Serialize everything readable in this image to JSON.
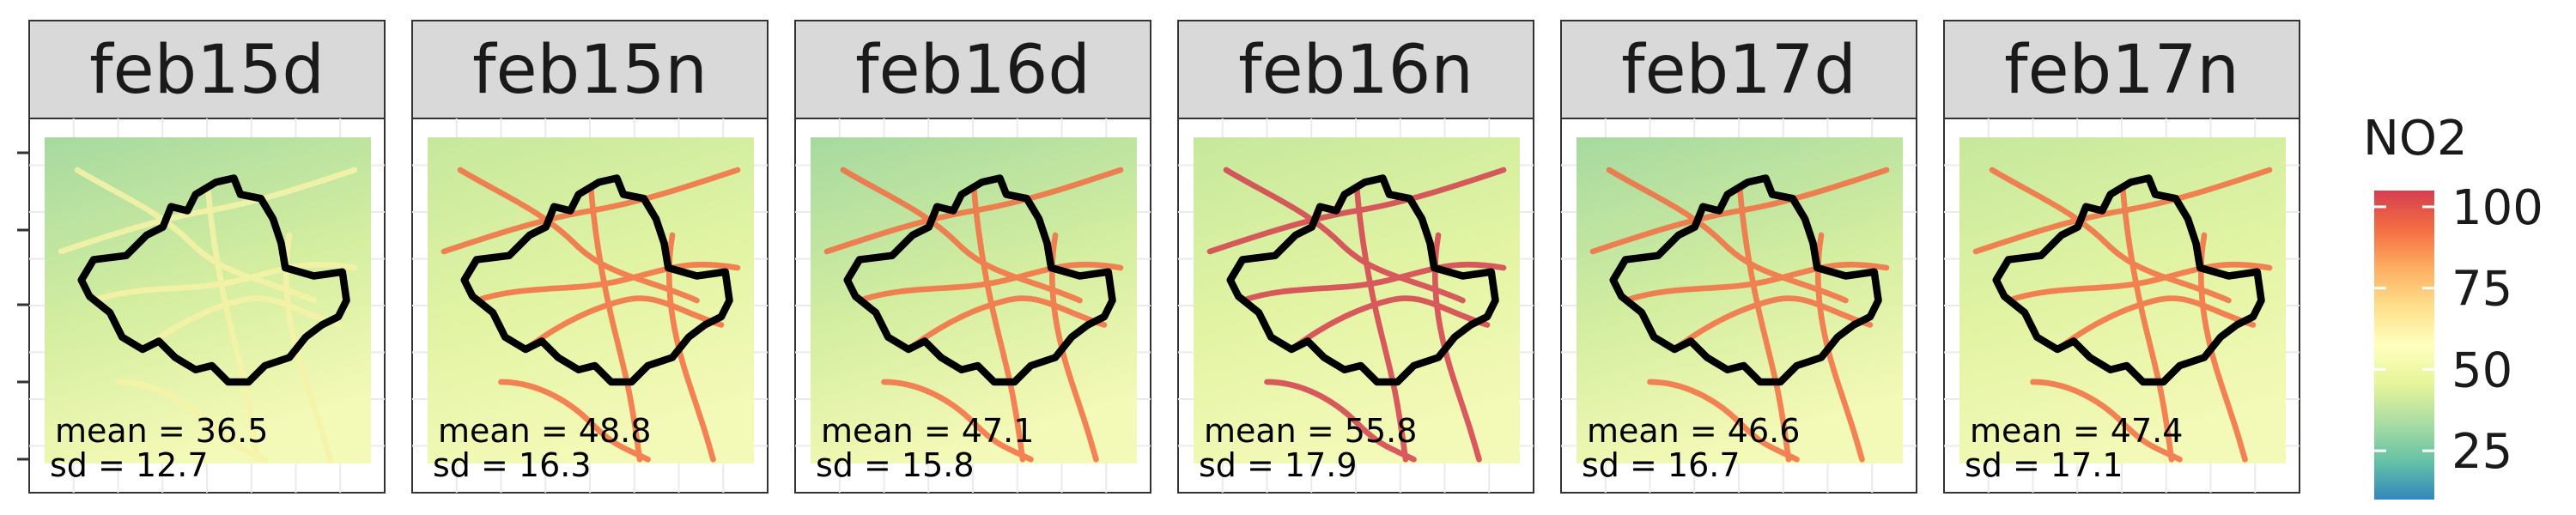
{
  "chart_data": {
    "type": "heatmap",
    "facets": [
      {
        "label": "feb15d",
        "mean": 36.5,
        "sd": 12.7,
        "mean_text": "mean = 36.5",
        "sd_text": "sd = 12.7"
      },
      {
        "label": "feb15n",
        "mean": 48.8,
        "sd": 16.3,
        "mean_text": "mean = 48.8",
        "sd_text": "sd = 16.3"
      },
      {
        "label": "feb16d",
        "mean": 47.1,
        "sd": 15.8,
        "mean_text": "mean = 47.1",
        "sd_text": "sd = 15.8"
      },
      {
        "label": "feb16n",
        "mean": 55.8,
        "sd": 17.9,
        "mean_text": "mean = 55.8",
        "sd_text": "sd = 17.9"
      },
      {
        "label": "feb17d",
        "mean": 46.6,
        "sd": 16.7,
        "mean_text": "mean = 46.6",
        "sd_text": "sd = 16.7"
      },
      {
        "label": "feb17n",
        "mean": 47.4,
        "sd": 17.1,
        "mean_text": "mean = 47.4",
        "sd_text": "sd = 17.1"
      }
    ],
    "legend": {
      "title": "NO2",
      "ticks": [
        100,
        75,
        50,
        25
      ],
      "tick_labels": [
        "100",
        "75",
        "50",
        "25"
      ],
      "range": [
        10,
        105
      ],
      "placement": "right",
      "colors": [
        "#3288bd",
        "#66c2a5",
        "#abdda4",
        "#e6f598",
        "#ffffbf",
        "#fee08b",
        "#fdae61",
        "#f46d43",
        "#d53e4f"
      ]
    },
    "grid": true,
    "xlabel": "",
    "ylabel": ""
  }
}
